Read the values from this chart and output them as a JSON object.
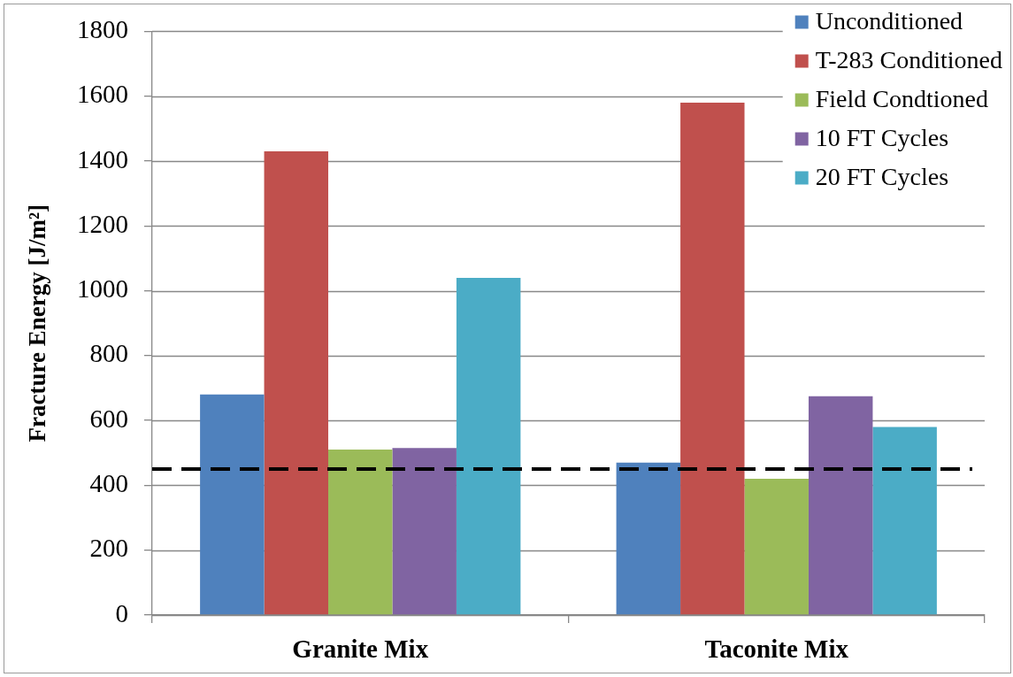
{
  "chart_data": {
    "type": "bar",
    "ylabel": "Fracture Energy [J/m²]",
    "categories": [
      "Granite Mix",
      "Taconite Mix"
    ],
    "series": [
      {
        "name": "Unconditioned",
        "color": "#4f81bd",
        "values": [
          680,
          470
        ]
      },
      {
        "name": "T-283 Conditioned",
        "color": "#c0504d",
        "values": [
          1430,
          1580
        ]
      },
      {
        "name": "Field Condtioned",
        "color": "#9bbb59",
        "values": [
          510,
          420
        ]
      },
      {
        "name": "10 FT Cycles",
        "color": "#8064a2",
        "values": [
          515,
          675
        ]
      },
      {
        "name": "20 FT Cycles",
        "color": "#4bacc6",
        "values": [
          1040,
          580
        ]
      }
    ],
    "ylim": [
      0,
      1800
    ],
    "yticks": [
      0,
      200,
      400,
      600,
      800,
      1000,
      1200,
      1400,
      1600,
      1800
    ],
    "grid": "y",
    "legend": "top right",
    "ref_lines": [
      {
        "axis": "y",
        "value": 450,
        "color": "#000000",
        "line_style": "dashed"
      }
    ]
  }
}
